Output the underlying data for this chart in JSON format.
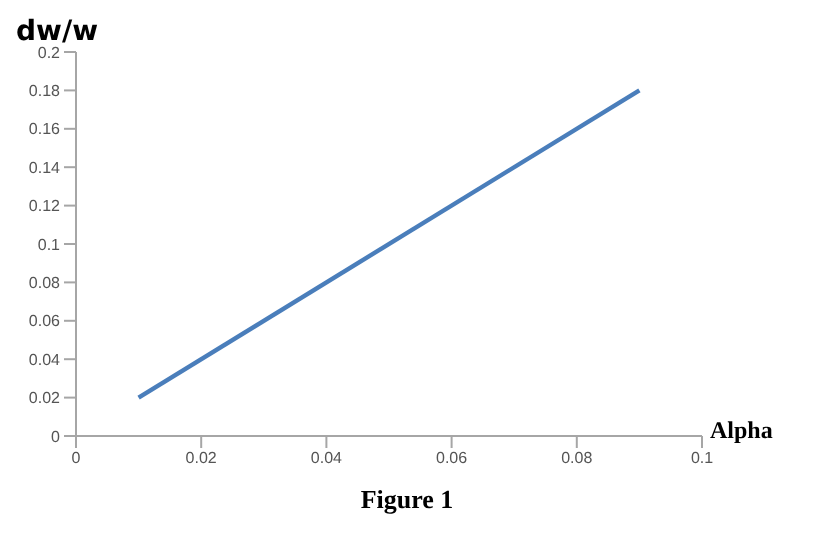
{
  "chart_data": {
    "type": "line",
    "xlabel": "Alpha",
    "ylabel": "dw/w",
    "annotations": [
      "Figure 1"
    ],
    "x": [
      0.01,
      0.09
    ],
    "series": [
      {
        "color": "#4a7ebb",
        "values": [
          0.02,
          0.18
        ]
      }
    ],
    "xlim": [
      0,
      0.1
    ],
    "xticks": [
      0,
      0.02,
      0.04,
      0.06,
      0.08,
      0.1
    ],
    "ylim": [
      0,
      0.2
    ],
    "yticks": [
      0,
      0.02,
      0.04,
      0.06,
      0.08,
      0.1,
      0.12,
      0.14,
      0.16,
      0.18,
      0.2
    ],
    "grid": false,
    "marker": "none",
    "line_style": "solid"
  }
}
